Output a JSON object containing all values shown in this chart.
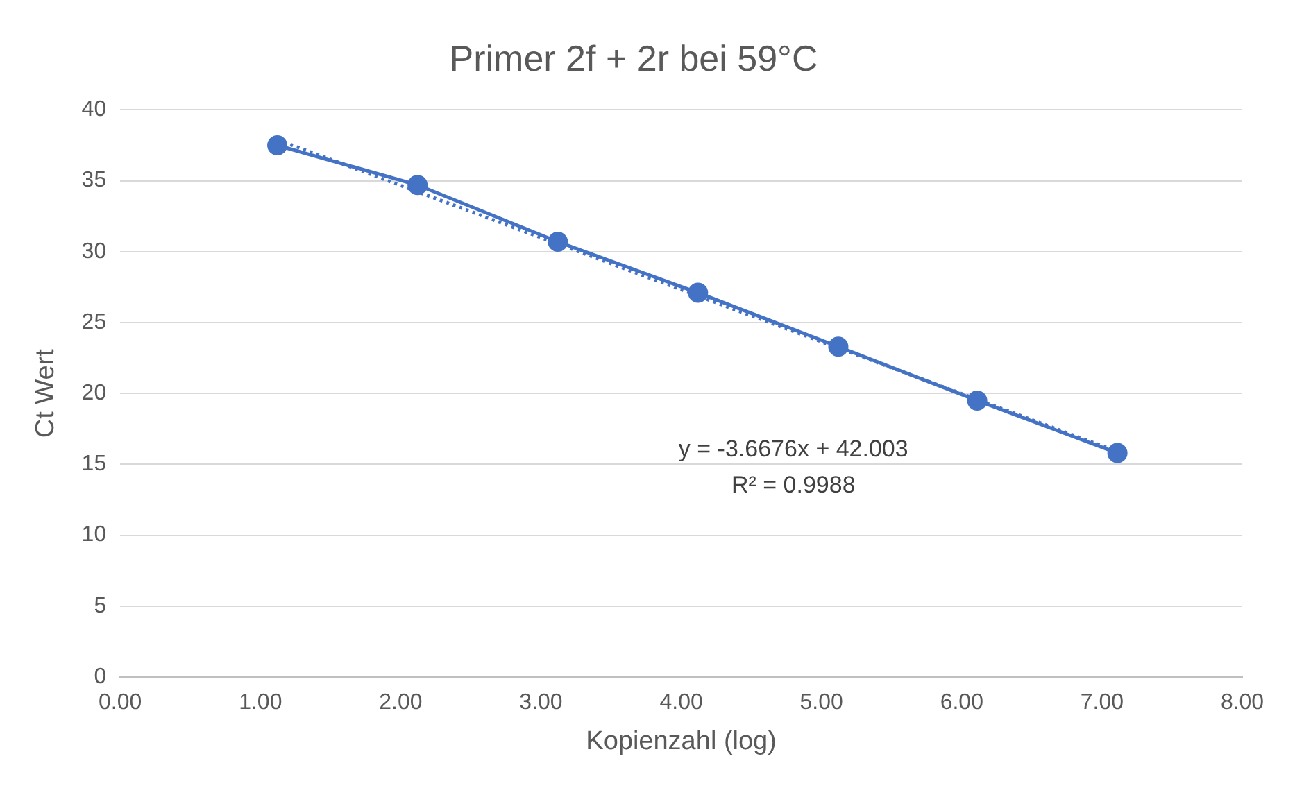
{
  "chart_data": {
    "type": "line",
    "title": "Primer 2f + 2r bei 59°C",
    "xlabel": "Kopienzahl (log)",
    "ylabel": "Ct Wert",
    "series": [
      {
        "color": "#4472c4",
        "marker": "circle",
        "line_style": "solid",
        "x": [
          1.12,
          2.12,
          3.12,
          4.12,
          5.12,
          6.11,
          7.11
        ],
        "values": [
          37.5,
          34.7,
          30.7,
          27.1,
          23.3,
          19.5,
          15.8
        ]
      },
      {
        "color": "#4472c4",
        "marker": "none",
        "line_style": "dotted",
        "x": [
          1.12,
          7.11
        ],
        "values": [
          37.9,
          15.9
        ]
      }
    ],
    "xlim": [
      0,
      8
    ],
    "xticks": [
      {
        "value": 0,
        "label": "0.00"
      },
      {
        "value": 1,
        "label": "1.00"
      },
      {
        "value": 2,
        "label": "2.00"
      },
      {
        "value": 3,
        "label": "3.00"
      },
      {
        "value": 4,
        "label": "4.00"
      },
      {
        "value": 5,
        "label": "5.00"
      },
      {
        "value": 6,
        "label": "6.00"
      },
      {
        "value": 7,
        "label": "7.00"
      },
      {
        "value": 8,
        "label": "8.00"
      }
    ],
    "ylim": [
      0,
      40
    ],
    "yticks": [
      0,
      5,
      10,
      15,
      20,
      25,
      30,
      35,
      40
    ],
    "grid": "y",
    "legend": false,
    "annotations": [
      "y = -3.6676x + 42.003",
      "R² = 0.9988"
    ]
  }
}
